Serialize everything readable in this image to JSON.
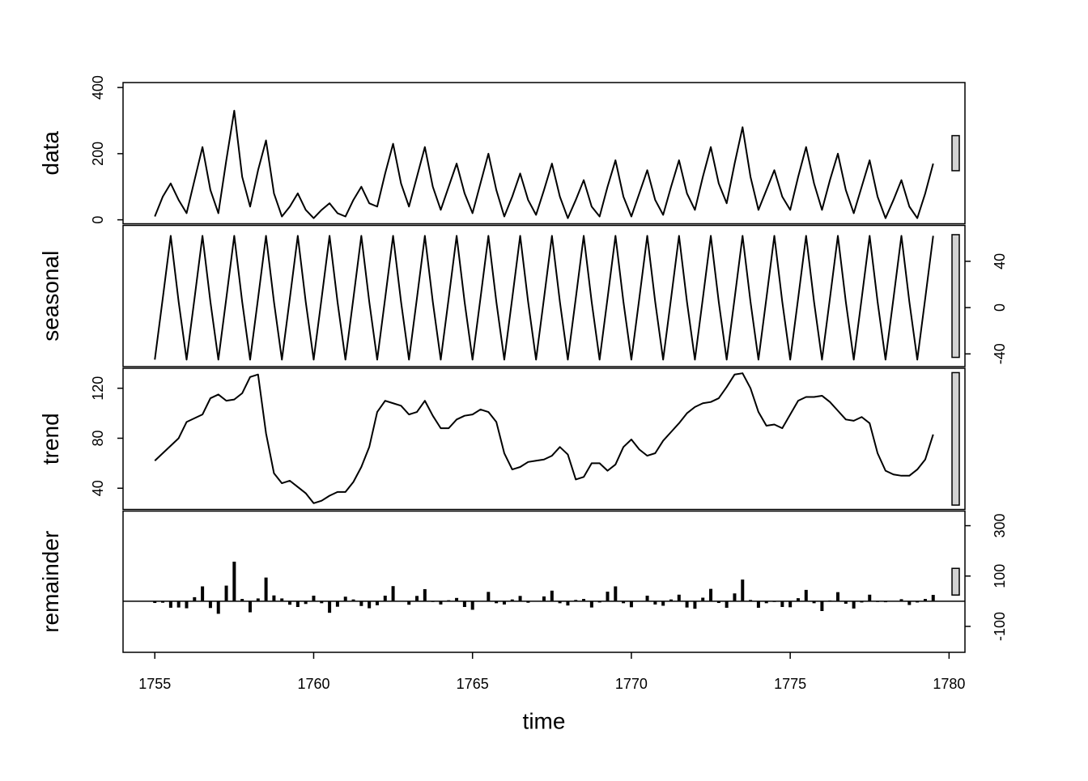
{
  "chart_data": {
    "type": "stl",
    "xlabel": "time",
    "xlim": [
      1754.0,
      1780.5
    ],
    "xticks": [
      1755,
      1760,
      1765,
      1770,
      1775,
      1780
    ],
    "color": "#000000",
    "range_bar": 106,
    "range_bar_color": "#d3d3d3",
    "x": [
      1755,
      1755.25,
      1755.5,
      1755.75,
      1756,
      1756.25,
      1756.5,
      1756.75,
      1757,
      1757.25,
      1757.5,
      1757.75,
      1758,
      1758.25,
      1758.5,
      1758.75,
      1759,
      1759.25,
      1759.5,
      1759.75,
      1760,
      1760.25,
      1760.5,
      1760.75,
      1761,
      1761.25,
      1761.5,
      1761.75,
      1762,
      1762.25,
      1762.5,
      1762.75,
      1763,
      1763.25,
      1763.5,
      1763.75,
      1764,
      1764.25,
      1764.5,
      1764.75,
      1765,
      1765.25,
      1765.5,
      1765.75,
      1766,
      1766.25,
      1766.5,
      1766.75,
      1767,
      1767.25,
      1767.5,
      1767.75,
      1768,
      1768.25,
      1768.5,
      1768.75,
      1769,
      1769.25,
      1769.5,
      1769.75,
      1770,
      1770.25,
      1770.5,
      1770.75,
      1771,
      1771.25,
      1771.5,
      1771.75,
      1772,
      1772.25,
      1772.5,
      1772.75,
      1773,
      1773.25,
      1773.5,
      1773.75,
      1774,
      1774.25,
      1774.5,
      1774.75,
      1775,
      1775.25,
      1775.5,
      1775.75,
      1776,
      1776.25,
      1776.5,
      1776.75,
      1777,
      1777.25,
      1777.5,
      1777.75,
      1778,
      1778.25,
      1778.5,
      1778.75,
      1779,
      1779.25,
      1779.5
    ],
    "panels": [
      {
        "name": "data",
        "style": "line",
        "axis_side": "left",
        "ylim": [
          -12,
          415
        ],
        "yticks": [
          0,
          200,
          400
        ],
        "values": [
          10,
          70,
          110,
          60,
          20,
          120,
          220,
          90,
          20,
          180,
          330,
          130,
          40,
          150,
          240,
          80,
          10,
          40,
          80,
          30,
          5,
          30,
          50,
          20,
          10,
          60,
          100,
          50,
          40,
          140,
          230,
          110,
          40,
          130,
          220,
          100,
          30,
          100,
          170,
          80,
          20,
          110,
          200,
          90,
          10,
          70,
          140,
          60,
          15,
          90,
          170,
          70,
          5,
          60,
          120,
          40,
          10,
          100,
          180,
          70,
          10,
          80,
          150,
          60,
          15,
          100,
          180,
          80,
          30,
          130,
          220,
          110,
          50,
          170,
          280,
          130,
          30,
          90,
          150,
          70,
          30,
          130,
          220,
          110,
          30,
          120,
          200,
          90,
          20,
          100,
          180,
          70,
          5,
          60,
          120,
          40,
          5,
          80,
          170
        ]
      },
      {
        "name": "seasonal",
        "style": "line",
        "axis_side": "right",
        "ylim": [
          -51,
          71
        ],
        "yticks": [
          -40,
          0,
          40
        ],
        "values": [
          -45,
          8,
          62,
          5,
          -45,
          8,
          62,
          5,
          -45,
          8,
          62,
          5,
          -45,
          8,
          62,
          5,
          -45,
          8,
          62,
          5,
          -45,
          8,
          62,
          5,
          -45,
          8,
          62,
          5,
          -45,
          8,
          62,
          5,
          -45,
          8,
          62,
          5,
          -45,
          8,
          62,
          5,
          -45,
          8,
          62,
          5,
          -45,
          8,
          62,
          5,
          -45,
          8,
          62,
          5,
          -45,
          8,
          62,
          5,
          -45,
          8,
          62,
          5,
          -45,
          8,
          62,
          5,
          -45,
          8,
          62,
          5,
          -45,
          8,
          62,
          5,
          -45,
          8,
          62,
          5,
          -45,
          8,
          62,
          5,
          -45,
          8,
          62,
          5,
          -45,
          8,
          62,
          5,
          -45,
          8,
          62,
          5,
          -45,
          8,
          62,
          5,
          -45,
          8,
          62
        ]
      },
      {
        "name": "trend",
        "style": "line",
        "axis_side": "left",
        "ylim": [
          23,
          136
        ],
        "yticks": [
          40,
          80,
          120
        ],
        "values": [
          62,
          68,
          74,
          80,
          93,
          96,
          99,
          112,
          115,
          110,
          111,
          116,
          129,
          131,
          84,
          52,
          44,
          46,
          41,
          36,
          28,
          30,
          34,
          37,
          37,
          45,
          57,
          73,
          101,
          110,
          108,
          106,
          99,
          101,
          110,
          98,
          88,
          88,
          95,
          98,
          99,
          103,
          101,
          93,
          68,
          55,
          57,
          61,
          62,
          63,
          66,
          73,
          67,
          47,
          49,
          60,
          60,
          54,
          59,
          73,
          79,
          71,
          66,
          68,
          78,
          85,
          92,
          100,
          105,
          108,
          109,
          112,
          121,
          131,
          132,
          120,
          101,
          90,
          91,
          88,
          99,
          110,
          113,
          113,
          114,
          109,
          102,
          95,
          94,
          97,
          92,
          68,
          54,
          51,
          50,
          50,
          55,
          63,
          83
        ]
      },
      {
        "name": "remainder",
        "style": "hist",
        "axis_side": "right",
        "ylim": [
          -203,
          358
        ],
        "yticks": [
          -100,
          100,
          300
        ],
        "values": [
          -7,
          -6,
          -26,
          -25,
          -28,
          16,
          59,
          -27,
          -50,
          62,
          157,
          9,
          -44,
          11,
          94,
          23,
          11,
          -14,
          -23,
          -11,
          22,
          -8,
          -46,
          -22,
          18,
          7,
          -19,
          -28,
          -16,
          22,
          60,
          -1,
          -14,
          21,
          48,
          -3,
          -13,
          4,
          13,
          -23,
          -34,
          -1,
          37,
          -8,
          -13,
          7,
          21,
          -6,
          -2,
          19,
          42,
          -8,
          -17,
          5,
          9,
          -25,
          -5,
          38,
          59,
          -8,
          -24,
          1,
          22,
          -13,
          -18,
          7,
          26,
          -25,
          -30,
          14,
          49,
          -7,
          -26,
          31,
          86,
          5,
          -26,
          -8,
          -3,
          -23,
          -24,
          12,
          45,
          -8,
          -39,
          3,
          36,
          -10,
          -29,
          -5,
          26,
          -3,
          -4,
          1,
          8,
          -15,
          -5,
          9,
          25
        ]
      }
    ]
  }
}
